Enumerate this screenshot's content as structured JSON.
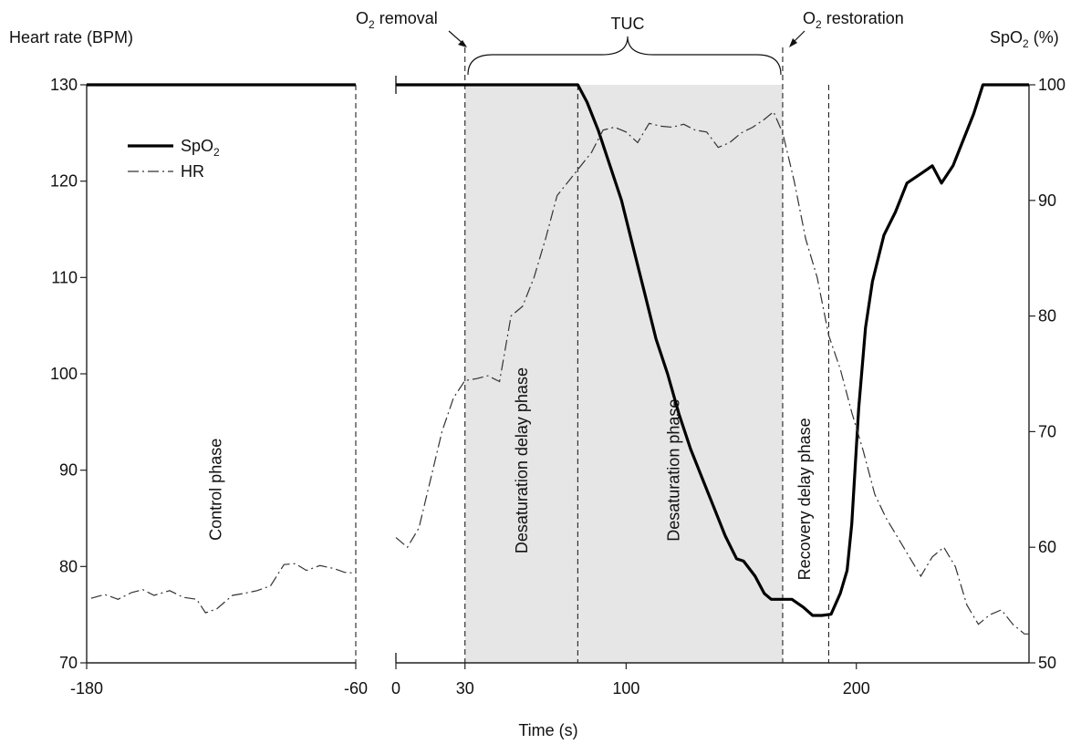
{
  "chart_data": {
    "type": "line",
    "y_left": {
      "label": "Heart rate (BPM)",
      "ticks": [
        "70",
        "80",
        "90",
        "100",
        "110",
        "120",
        "130"
      ],
      "range": [
        70,
        130
      ]
    },
    "y_right": {
      "label_prefix": "SpO",
      "label_sub": "2",
      "label_suffix": " (%)",
      "ticks": [
        "50",
        "60",
        "70",
        "80",
        "90",
        "100"
      ],
      "range": [
        50,
        100
      ]
    },
    "x_axis": {
      "label": "Time (s)",
      "segments": [
        {
          "range": [
            -180,
            -60
          ],
          "ticks": [
            "-180",
            "-60"
          ]
        },
        {
          "range": [
            0,
            275
          ],
          "ticks": [
            "0",
            "30",
            "100",
            "200"
          ]
        }
      ]
    },
    "legend": {
      "position": "top-left",
      "items": [
        {
          "prefix": "SpO",
          "sub": "2",
          "style": "solid-bold"
        },
        {
          "prefix": "HR",
          "sub": "",
          "style": "dash-dot"
        }
      ]
    },
    "annotations": {
      "o2_removal": {
        "prefix": "O",
        "sub": "2",
        "suffix": " removal",
        "x": 30
      },
      "o2_restoration": {
        "prefix": "O",
        "sub": "2",
        "suffix": " restoration",
        "x": 168
      },
      "tuc": {
        "label": "TUC",
        "x_range": [
          30,
          168
        ]
      }
    },
    "phase_boundaries": [
      30,
      79,
      168,
      188
    ],
    "shaded_region": [
      30,
      168
    ],
    "phases": [
      {
        "label": "Control phase",
        "x": -120,
        "y_hr": 88
      },
      {
        "label": "Desaturation delay phase",
        "x": 57,
        "y_hr": 91
      },
      {
        "label": "Desaturation phase",
        "x": 123,
        "y_hr": 90
      },
      {
        "label": "Recovery delay  phase",
        "x": 180,
        "y_hr": 87
      }
    ],
    "series": [
      {
        "name": "SpO2",
        "axis": "right",
        "segments": [
          [
            [
              -180,
              100
            ],
            [
              -60,
              100
            ]
          ],
          [
            [
              0,
              100
            ],
            [
              30,
              100
            ],
            [
              79,
              100
            ],
            [
              83,
              98.5
            ],
            [
              88,
              96
            ],
            [
              93,
              93
            ],
            [
              98,
              90
            ],
            [
              103,
              86
            ],
            [
              108,
              82
            ],
            [
              113,
              78
            ],
            [
              118,
              75
            ],
            [
              123,
              71.5
            ],
            [
              128,
              68.5
            ],
            [
              133,
              66
            ],
            [
              138,
              63.5
            ],
            [
              143,
              61
            ],
            [
              148,
              59
            ],
            [
              151,
              58.8
            ],
            [
              156,
              57.5
            ],
            [
              160,
              56
            ],
            [
              163,
              55.5
            ],
            [
              167,
              55.5
            ],
            [
              172,
              55.5
            ],
            [
              177,
              54.8
            ],
            [
              181,
              54.1
            ],
            [
              185,
              54.1
            ],
            [
              189,
              54.2
            ],
            [
              193,
              56
            ],
            [
              196,
              58
            ],
            [
              198,
              62
            ],
            [
              201,
              72
            ],
            [
              204,
              79
            ],
            [
              207,
              83
            ],
            [
              212,
              87
            ],
            [
              217,
              89
            ],
            [
              222,
              91.5
            ],
            [
              228,
              92.3
            ],
            [
              233,
              93
            ],
            [
              237,
              91.5
            ],
            [
              242,
              93
            ],
            [
              246,
              95
            ],
            [
              251,
              97.5
            ],
            [
              255,
              100
            ],
            [
              262,
              100
            ],
            [
              270,
              100
            ],
            [
              275,
              100
            ]
          ]
        ]
      },
      {
        "name": "HR",
        "axis": "left",
        "segments": [
          [
            [
              -178,
              76.7
            ],
            [
              -172,
              77.1
            ],
            [
              -166,
              76.6
            ],
            [
              -160,
              77.3
            ],
            [
              -155,
              77.6
            ],
            [
              -150,
              77
            ],
            [
              -143,
              77.5
            ],
            [
              -137,
              76.8
            ],
            [
              -131,
              76.6
            ],
            [
              -127,
              75.2
            ],
            [
              -122,
              75.6
            ],
            [
              -115,
              77
            ],
            [
              -110,
              77.2
            ],
            [
              -104,
              77.5
            ],
            [
              -98,
              78
            ],
            [
              -92,
              80.2
            ],
            [
              -87,
              80.3
            ],
            [
              -82,
              79.6
            ],
            [
              -76,
              80.1
            ],
            [
              -70,
              79.8
            ],
            [
              -65,
              79.4
            ],
            [
              -60,
              79.3
            ]
          ],
          [
            [
              0,
              83
            ],
            [
              5,
              82
            ],
            [
              10,
              84
            ],
            [
              15,
              89
            ],
            [
              20,
              94
            ],
            [
              25,
              97.5
            ],
            [
              30,
              99.3
            ],
            [
              35,
              99.5
            ],
            [
              40,
              99.8
            ],
            [
              45,
              99.2
            ],
            [
              50,
              106
            ],
            [
              55,
              107
            ],
            [
              60,
              110
            ],
            [
              65,
              114
            ],
            [
              70,
              118.5
            ],
            [
              75,
              120
            ],
            [
              79,
              121.2
            ],
            [
              85,
              123
            ],
            [
              90,
              125.3
            ],
            [
              95,
              125.6
            ],
            [
              100,
              125.1
            ],
            [
              105,
              124
            ],
            [
              110,
              126
            ],
            [
              115,
              125.7
            ],
            [
              120,
              125.6
            ],
            [
              125,
              125.9
            ],
            [
              130,
              125.3
            ],
            [
              135,
              125.1
            ],
            [
              140,
              123.5
            ],
            [
              145,
              124
            ],
            [
              150,
              125
            ],
            [
              155,
              125.6
            ],
            [
              160,
              126.4
            ],
            [
              164,
              127.2
            ],
            [
              168,
              125
            ],
            [
              173,
              120
            ],
            [
              178,
              114
            ],
            [
              183,
              110
            ],
            [
              188,
              104
            ],
            [
              193,
              100.5
            ],
            [
              198,
              96
            ],
            [
              203,
              92
            ],
            [
              208,
              87.5
            ],
            [
              213,
              85
            ],
            [
              218,
              83
            ],
            [
              223,
              81
            ],
            [
              228,
              79
            ],
            [
              233,
              81
            ],
            [
              238,
              82
            ],
            [
              243,
              80
            ],
            [
              248,
              76
            ],
            [
              253,
              74
            ],
            [
              258,
              75
            ],
            [
              263,
              75.5
            ],
            [
              268,
              74
            ],
            [
              273,
              73
            ],
            [
              275,
              73
            ]
          ]
        ]
      }
    ]
  }
}
